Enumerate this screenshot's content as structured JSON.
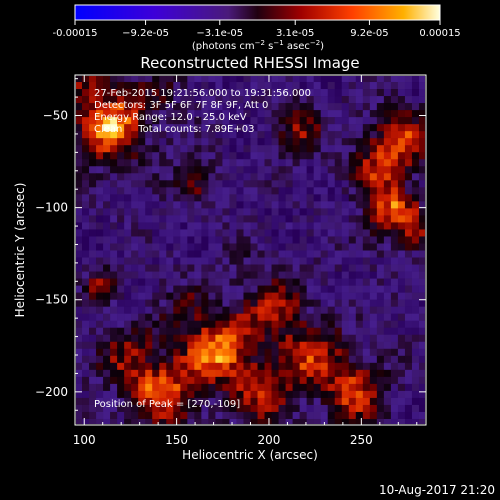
{
  "chart_data": {
    "type": "heatmap",
    "title": "Reconstructed RHESSI Image",
    "xlabel": "Heliocentric X (arcsec)",
    "ylabel": "Heliocentric Y (arcsec)",
    "xlim": [
      95,
      285
    ],
    "ylim": [
      -218,
      -28
    ],
    "x_ticks": [
      100,
      150,
      200,
      250
    ],
    "y_ticks": [
      -50,
      -100,
      -150,
      -200
    ],
    "colorbar": {
      "range": [
        -0.00015,
        0.00015
      ],
      "tick_values": [
        -0.00015,
        -9.2e-05,
        -3.1e-05,
        3.1e-05,
        9.2e-05,
        0.00015
      ],
      "tick_labels": [
        "-0.00015",
        "−9.2e-05",
        "−3.1e-05",
        "3.1e-05",
        "9.2e-05",
        "0.00015"
      ],
      "unit_label": "(photons cm",
      "unit_exp1": "−2",
      "unit_mid": " s",
      "unit_exp2": "−1",
      "unit_end": " asec",
      "unit_exp3": "−2",
      "unit_close": ")"
    },
    "annotations": [
      "27-Feb-2015 19:21:56.000 to 19:31:56.000",
      "Detectors: 3F 5F 6F 7F 8F 9F, Att 0",
      "Energy Range: 12.0 - 25.0 keV",
      "Clean     Total counts: 7.89E+03"
    ],
    "peak_label": "Position of Peak = [270,-109]",
    "peak": [
      270,
      -109
    ]
  },
  "footer_timestamp": "10-Aug-2017 21:20"
}
